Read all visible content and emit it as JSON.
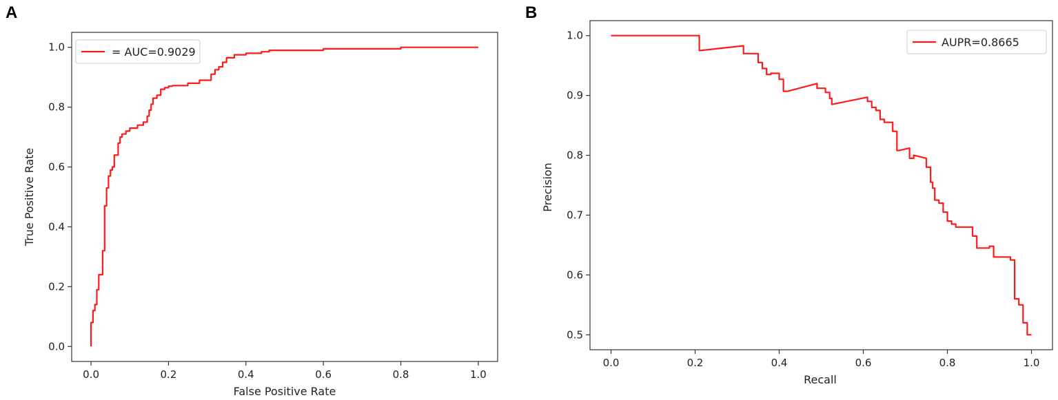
{
  "colors": {
    "curve": "#ff1a1a",
    "frame": "#333333"
  },
  "chart_data": [
    {
      "type": "line",
      "panel_label": "A",
      "xlabel": "False Positive Rate",
      "ylabel": "True Positive Rate",
      "xlim": [
        -0.05,
        1.05
      ],
      "ylim": [
        -0.05,
        1.05
      ],
      "xticks": [
        0.0,
        0.2,
        0.4,
        0.6,
        0.8,
        1.0
      ],
      "xtick_labels": [
        "0.0",
        "0.2",
        "0.4",
        "0.6",
        "0.8",
        "1.0"
      ],
      "yticks": [
        0.0,
        0.2,
        0.4,
        0.6,
        0.8,
        1.0
      ],
      "ytick_labels": [
        "0.0",
        "0.2",
        "0.4",
        "0.6",
        "0.8",
        "1.0"
      ],
      "grid": false,
      "legend_position": "top-left",
      "series": [
        {
          "name": "= AUC=0.9029",
          "x": [
            0.0,
            0.0,
            0.005,
            0.005,
            0.01,
            0.01,
            0.015,
            0.015,
            0.02,
            0.02,
            0.03,
            0.03,
            0.035,
            0.035,
            0.04,
            0.04,
            0.045,
            0.045,
            0.05,
            0.05,
            0.055,
            0.055,
            0.06,
            0.06,
            0.07,
            0.07,
            0.075,
            0.075,
            0.08,
            0.08,
            0.09,
            0.09,
            0.1,
            0.1,
            0.12,
            0.12,
            0.135,
            0.135,
            0.145,
            0.145,
            0.15,
            0.15,
            0.155,
            0.155,
            0.16,
            0.16,
            0.17,
            0.17,
            0.18,
            0.18,
            0.19,
            0.19,
            0.2,
            0.2,
            0.21,
            0.21,
            0.25,
            0.25,
            0.28,
            0.28,
            0.31,
            0.31,
            0.32,
            0.32,
            0.33,
            0.33,
            0.34,
            0.34,
            0.35,
            0.35,
            0.37,
            0.37,
            0.4,
            0.4,
            0.44,
            0.44,
            0.46,
            0.46,
            0.6,
            0.6,
            0.8,
            0.8,
            1.0
          ],
          "y": [
            0.0,
            0.08,
            0.08,
            0.12,
            0.12,
            0.14,
            0.14,
            0.19,
            0.19,
            0.24,
            0.24,
            0.32,
            0.32,
            0.47,
            0.47,
            0.53,
            0.53,
            0.57,
            0.57,
            0.59,
            0.59,
            0.6,
            0.6,
            0.64,
            0.64,
            0.68,
            0.68,
            0.7,
            0.7,
            0.71,
            0.71,
            0.72,
            0.72,
            0.73,
            0.73,
            0.74,
            0.74,
            0.75,
            0.75,
            0.77,
            0.77,
            0.79,
            0.79,
            0.81,
            0.81,
            0.83,
            0.83,
            0.84,
            0.84,
            0.86,
            0.86,
            0.865,
            0.865,
            0.87,
            0.87,
            0.872,
            0.872,
            0.88,
            0.88,
            0.89,
            0.89,
            0.91,
            0.91,
            0.925,
            0.925,
            0.935,
            0.935,
            0.95,
            0.95,
            0.965,
            0.965,
            0.975,
            0.975,
            0.98,
            0.98,
            0.985,
            0.985,
            0.99,
            0.99,
            0.995,
            0.995,
            1.0,
            1.0
          ]
        }
      ]
    },
    {
      "type": "line",
      "panel_label": "B",
      "xlabel": "Recall",
      "ylabel": "Precision",
      "xlim": [
        -0.05,
        1.05
      ],
      "ylim": [
        0.475,
        1.025
      ],
      "xticks": [
        0.0,
        0.2,
        0.4,
        0.6,
        0.8,
        1.0
      ],
      "xtick_labels": [
        "0.0",
        "0.2",
        "0.4",
        "0.6",
        "0.8",
        "1.0"
      ],
      "yticks": [
        0.5,
        0.6,
        0.7,
        0.8,
        0.9,
        1.0
      ],
      "ytick_labels": [
        "0.5",
        "0.6",
        "0.7",
        "0.8",
        "0.9",
        "1.0"
      ],
      "grid": false,
      "legend_position": "top-right",
      "series": [
        {
          "name": "AUPR=0.8665",
          "x": [
            0.0,
            0.21,
            0.21,
            0.315,
            0.315,
            0.34,
            0.34,
            0.35,
            0.35,
            0.36,
            0.36,
            0.37,
            0.37,
            0.38,
            0.38,
            0.4,
            0.4,
            0.41,
            0.41,
            0.42,
            0.42,
            0.49,
            0.49,
            0.51,
            0.51,
            0.52,
            0.52,
            0.525,
            0.525,
            0.61,
            0.61,
            0.62,
            0.62,
            0.63,
            0.63,
            0.64,
            0.64,
            0.65,
            0.65,
            0.67,
            0.67,
            0.68,
            0.68,
            0.685,
            0.685,
            0.71,
            0.71,
            0.72,
            0.72,
            0.75,
            0.75,
            0.76,
            0.76,
            0.765,
            0.765,
            0.77,
            0.77,
            0.78,
            0.78,
            0.79,
            0.79,
            0.8,
            0.8,
            0.81,
            0.81,
            0.82,
            0.82,
            0.86,
            0.86,
            0.87,
            0.87,
            0.9,
            0.9,
            0.91,
            0.91,
            0.95,
            0.95,
            0.96,
            0.96,
            0.97,
            0.97,
            0.98,
            0.98,
            0.99,
            0.99,
            1.0
          ],
          "y": [
            1.0,
            1.0,
            0.975,
            0.983,
            0.97,
            0.97,
            0.97,
            0.97,
            0.955,
            0.955,
            0.945,
            0.945,
            0.935,
            0.935,
            0.937,
            0.937,
            0.927,
            0.927,
            0.907,
            0.907,
            0.907,
            0.92,
            0.912,
            0.912,
            0.905,
            0.905,
            0.895,
            0.895,
            0.885,
            0.897,
            0.89,
            0.89,
            0.88,
            0.88,
            0.875,
            0.875,
            0.86,
            0.86,
            0.855,
            0.855,
            0.84,
            0.84,
            0.808,
            0.808,
            0.808,
            0.812,
            0.795,
            0.795,
            0.8,
            0.795,
            0.78,
            0.78,
            0.755,
            0.755,
            0.745,
            0.745,
            0.725,
            0.725,
            0.72,
            0.72,
            0.705,
            0.705,
            0.69,
            0.69,
            0.685,
            0.685,
            0.68,
            0.68,
            0.665,
            0.665,
            0.645,
            0.645,
            0.648,
            0.648,
            0.63,
            0.63,
            0.625,
            0.625,
            0.56,
            0.56,
            0.55,
            0.55,
            0.52,
            0.52,
            0.5,
            0.5
          ]
        }
      ]
    }
  ]
}
